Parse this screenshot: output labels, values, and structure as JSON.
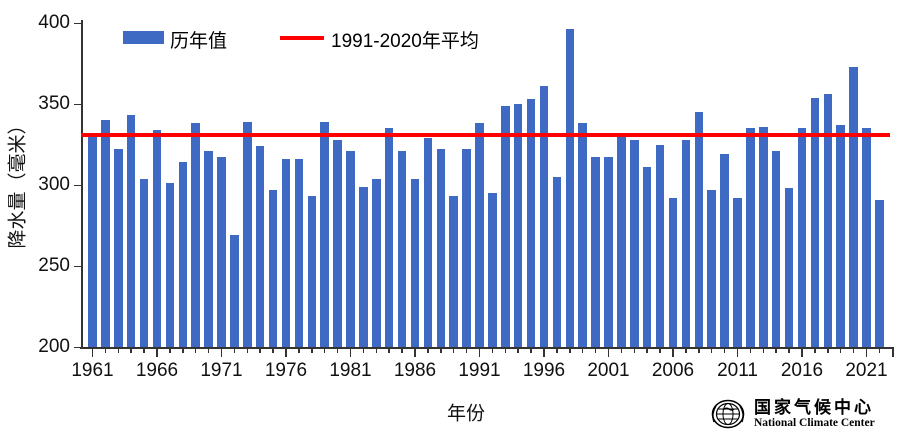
{
  "legend": {
    "bars_label": "历年值",
    "line_label": "1991-2020年平均"
  },
  "footer": {
    "logo_cn": "国家气候中心",
    "logo_en": "National Climate Center"
  },
  "chart_data": {
    "type": "bar",
    "title": "",
    "xlabel": "年份",
    "ylabel": "降水量（毫米）",
    "ylim": [
      200,
      400
    ],
    "yticks": [
      200,
      250,
      300,
      350,
      400
    ],
    "xticks": [
      1961,
      1966,
      1971,
      1976,
      1981,
      1986,
      1991,
      1996,
      2001,
      2006,
      2011,
      2016,
      2021
    ],
    "grid": false,
    "legend_position": "top",
    "series_name": "历年值",
    "x": [
      1961,
      1962,
      1963,
      1964,
      1965,
      1966,
      1967,
      1968,
      1969,
      1970,
      1971,
      1972,
      1973,
      1974,
      1975,
      1976,
      1977,
      1978,
      1979,
      1980,
      1981,
      1982,
      1983,
      1984,
      1985,
      1986,
      1987,
      1988,
      1989,
      1990,
      1991,
      1992,
      1993,
      1994,
      1995,
      1996,
      1997,
      1998,
      1999,
      2000,
      2001,
      2002,
      2003,
      2004,
      2005,
      2006,
      2007,
      2008,
      2009,
      2010,
      2011,
      2012,
      2013,
      2014,
      2015,
      2016,
      2017,
      2018,
      2019,
      2020,
      2021,
      2022
    ],
    "values": [
      330,
      340,
      322,
      343,
      304,
      334,
      301,
      314,
      338,
      321,
      317,
      269,
      339,
      324,
      297,
      316,
      316,
      293,
      339,
      328,
      321,
      299,
      304,
      335,
      321,
      304,
      329,
      322,
      293,
      322,
      338,
      295,
      349,
      350,
      353,
      361,
      305,
      396,
      338,
      317,
      317,
      330,
      328,
      311,
      325,
      292,
      328,
      345,
      297,
      319,
      292,
      335,
      336,
      321,
      298,
      335,
      354,
      356,
      337,
      373,
      335,
      291
    ],
    "reference_line": {
      "name": "1991-2020年平均",
      "value": 331
    },
    "bar_color": "#3F6AC4",
    "line_color": "#FF0000"
  }
}
